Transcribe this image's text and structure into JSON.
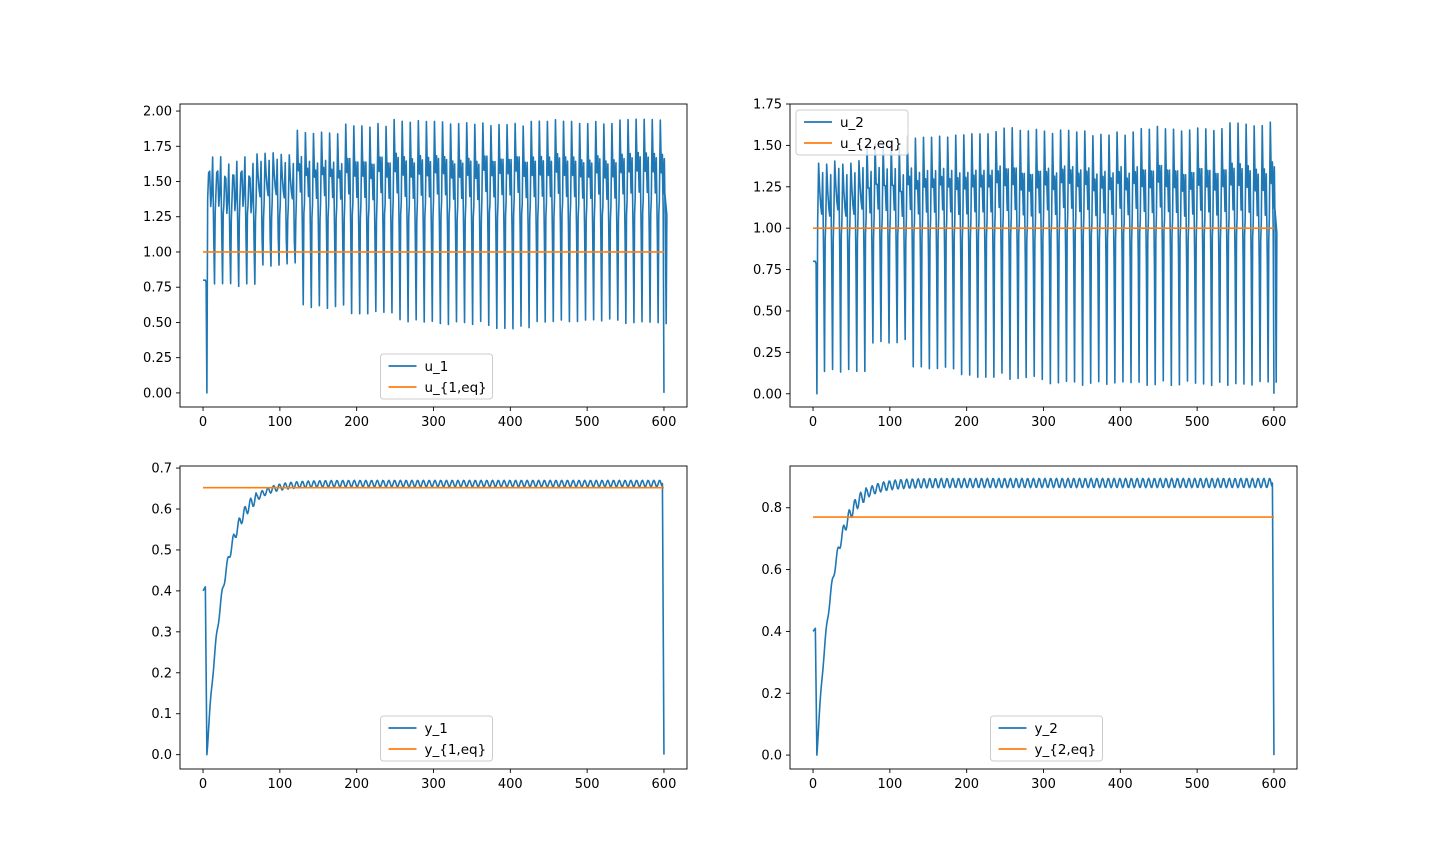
{
  "chart_data": [
    {
      "type": "line",
      "id": "u1",
      "title": "",
      "xlabel": "",
      "ylabel": "",
      "xlim": [
        -30,
        630
      ],
      "ylim": [
        -0.1,
        2.05
      ],
      "xticks": [
        0,
        100,
        200,
        300,
        400,
        500,
        600
      ],
      "yticks": [
        0.0,
        0.25,
        0.5,
        0.75,
        1.0,
        1.25,
        1.5,
        1.75,
        2.0
      ],
      "ytick_labels": [
        "0.00",
        "0.25",
        "0.50",
        "0.75",
        "1.00",
        "1.25",
        "1.50",
        "1.75",
        "2.00"
      ],
      "legend_position": "lower-center",
      "series": [
        {
          "name": "u_1",
          "color": "#1f77b4",
          "kind": "oscillating",
          "params": {
            "start": 0.8,
            "period": 10.5,
            "start_osc": 6,
            "base": 1.3,
            "min_vals": [
              0.75,
              0.9,
              0.6,
              0.55,
              0.5,
              0.48,
              0.45,
              0.5,
              0.5,
              0.48,
              0.5
            ],
            "max_vals": [
              1.55,
              1.7,
              1.85,
              1.9,
              1.93,
              1.92,
              1.9,
              1.93,
              1.92,
              1.93,
              1.85
            ],
            "drop_end": 0.0
          }
        },
        {
          "name": "u_{1,eq}",
          "color": "#ff7f0e",
          "x": [
            0,
            600
          ],
          "y": [
            1.0,
            1.0
          ]
        }
      ]
    },
    {
      "type": "line",
      "id": "u2",
      "title": "",
      "xlabel": "",
      "ylabel": "",
      "xlim": [
        -30,
        630
      ],
      "ylim": [
        -0.08,
        1.75
      ],
      "xticks": [
        0,
        100,
        200,
        300,
        400,
        500,
        600
      ],
      "yticks": [
        0.0,
        0.25,
        0.5,
        0.75,
        1.0,
        1.25,
        1.5,
        1.75
      ],
      "ytick_labels": [
        "0.00",
        "0.25",
        "0.50",
        "0.75",
        "1.00",
        "1.25",
        "1.50",
        "1.75"
      ],
      "legend_position": "upper-left",
      "series": [
        {
          "name": "u_2",
          "color": "#1f77b4",
          "kind": "oscillating",
          "params": {
            "start": 0.8,
            "period": 10.5,
            "start_osc": 6,
            "base": 1.0,
            "min_vals": [
              0.12,
              0.3,
              0.15,
              0.1,
              0.08,
              0.05,
              0.05,
              0.05,
              0.05,
              0.05,
              0.1
            ],
            "max_vals": [
              1.4,
              1.5,
              1.55,
              1.57,
              1.6,
              1.58,
              1.57,
              1.6,
              1.6,
              1.63,
              1.56
            ],
            "drop_end": 0.0
          }
        },
        {
          "name": "u_{2,eq}",
          "color": "#ff7f0e",
          "x": [
            0,
            600
          ],
          "y": [
            1.0,
            1.0
          ]
        }
      ]
    },
    {
      "type": "line",
      "id": "y1",
      "title": "",
      "xlabel": "",
      "ylabel": "",
      "xlim": [
        -30,
        630
      ],
      "ylim": [
        -0.035,
        0.705
      ],
      "xticks": [
        0,
        100,
        200,
        300,
        400,
        500,
        600
      ],
      "yticks": [
        0.0,
        0.1,
        0.2,
        0.3,
        0.4,
        0.5,
        0.6,
        0.7
      ],
      "ytick_labels": [
        "0.0",
        "0.1",
        "0.2",
        "0.3",
        "0.4",
        "0.5",
        "0.6",
        "0.7"
      ],
      "legend_position": "lower-center",
      "series": [
        {
          "name": "y_1",
          "color": "#1f77b4",
          "kind": "rise",
          "params": {
            "start": 0.4,
            "bump": 0.41,
            "final": 0.662,
            "ripple": 0.008,
            "tau": 22,
            "drop_end": 0.0
          }
        },
        {
          "name": "y_{1,eq}",
          "color": "#ff7f0e",
          "x": [
            0,
            600
          ],
          "y": [
            0.652,
            0.652
          ]
        }
      ]
    },
    {
      "type": "line",
      "id": "y2",
      "title": "",
      "xlabel": "",
      "ylabel": "",
      "xlim": [
        -30,
        630
      ],
      "ylim": [
        -0.045,
        0.935
      ],
      "xticks": [
        0,
        100,
        200,
        300,
        400,
        500,
        600
      ],
      "yticks": [
        0.0,
        0.2,
        0.4,
        0.6,
        0.8
      ],
      "ytick_labels": [
        "0.0",
        "0.2",
        "0.4",
        "0.6",
        "0.8"
      ],
      "legend_position": "lower-center",
      "series": [
        {
          "name": "y_2",
          "color": "#1f77b4",
          "kind": "rise",
          "params": {
            "start": 0.4,
            "bump": 0.41,
            "final": 0.88,
            "ripple": 0.015,
            "tau": 20,
            "drop_end": 0.0
          }
        },
        {
          "name": "y_{2,eq}",
          "color": "#ff7f0e",
          "x": [
            0,
            600
          ],
          "y": [
            0.77,
            0.77
          ]
        }
      ]
    }
  ]
}
